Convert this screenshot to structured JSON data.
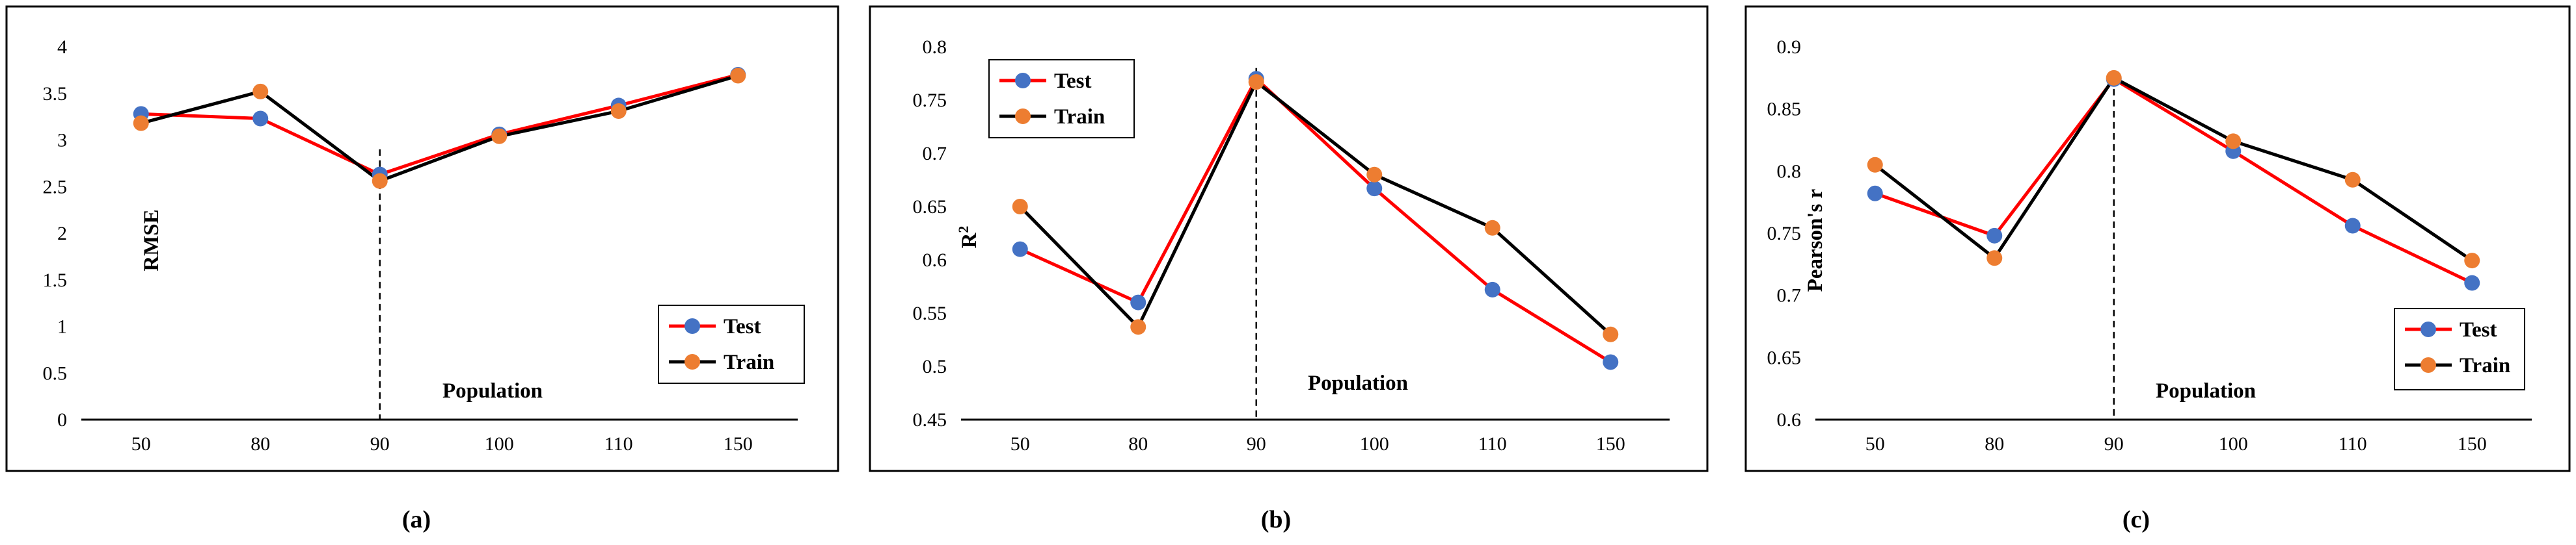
{
  "colors": {
    "test": "#ff0000",
    "test_marker": "#4472c4",
    "train": "#000000",
    "train_marker": "#ed7d31"
  },
  "chart_data": [
    {
      "type": "line",
      "caption": "(a)",
      "xlabel": "Population",
      "ylabel": "RMSE",
      "ylabel_sup": "",
      "categories": [
        "50",
        "80",
        "90",
        "100",
        "110",
        "150"
      ],
      "ylim": [
        0,
        4
      ],
      "yticks": [
        0,
        0.5,
        1,
        1.5,
        2,
        2.5,
        3,
        3.5,
        4
      ],
      "ytick_labels": [
        "0",
        "0.5",
        "1",
        "1.5",
        "2",
        "2.5",
        "3",
        "3.5",
        "4"
      ],
      "series": [
        {
          "name": "Test",
          "values": [
            3.28,
            3.23,
            2.63,
            3.06,
            3.37,
            3.7
          ]
        },
        {
          "name": "Train",
          "values": [
            3.18,
            3.52,
            2.56,
            3.04,
            3.31,
            3.69
          ]
        }
      ],
      "marker_category": "90",
      "marker_top": 2.9,
      "legend_location": "lower-right"
    },
    {
      "type": "line",
      "caption": "(b)",
      "xlabel": "Population",
      "ylabel": "R",
      "ylabel_sup": "2",
      "categories": [
        "50",
        "80",
        "90",
        "100",
        "110",
        "150"
      ],
      "ylim": [
        0.45,
        0.8
      ],
      "yticks": [
        0.45,
        0.5,
        0.55,
        0.6,
        0.65,
        0.7,
        0.75,
        0.8
      ],
      "ytick_labels": [
        "0.45",
        "0.5",
        "0.55",
        "0.6",
        "0.65",
        "0.7",
        "0.75",
        "0.8"
      ],
      "series": [
        {
          "name": "Test",
          "values": [
            0.61,
            0.56,
            0.77,
            0.667,
            0.572,
            0.504
          ]
        },
        {
          "name": "Train",
          "values": [
            0.65,
            0.537,
            0.767,
            0.68,
            0.63,
            0.53
          ]
        }
      ],
      "marker_category": "90",
      "marker_top": 0.78,
      "legend_location": "top-left"
    },
    {
      "type": "line",
      "caption": "(c)",
      "xlabel": "Population",
      "ylabel": "Pearson's r",
      "ylabel_sup": "",
      "categories": [
        "50",
        "80",
        "90",
        "100",
        "110",
        "150"
      ],
      "ylim": [
        0.6,
        0.9
      ],
      "yticks": [
        0.6,
        0.65,
        0.7,
        0.75,
        0.8,
        0.85,
        0.9
      ],
      "ytick_labels": [
        "0.6",
        "0.65",
        "0.7",
        "0.75",
        "0.8",
        "0.85",
        "0.9"
      ],
      "series": [
        {
          "name": "Test",
          "values": [
            0.782,
            0.748,
            0.874,
            0.816,
            0.756,
            0.71
          ]
        },
        {
          "name": "Train",
          "values": [
            0.805,
            0.73,
            0.875,
            0.824,
            0.793,
            0.728
          ]
        }
      ],
      "marker_category": "90",
      "marker_top": 0.875,
      "legend_location": "lower-right"
    }
  ]
}
